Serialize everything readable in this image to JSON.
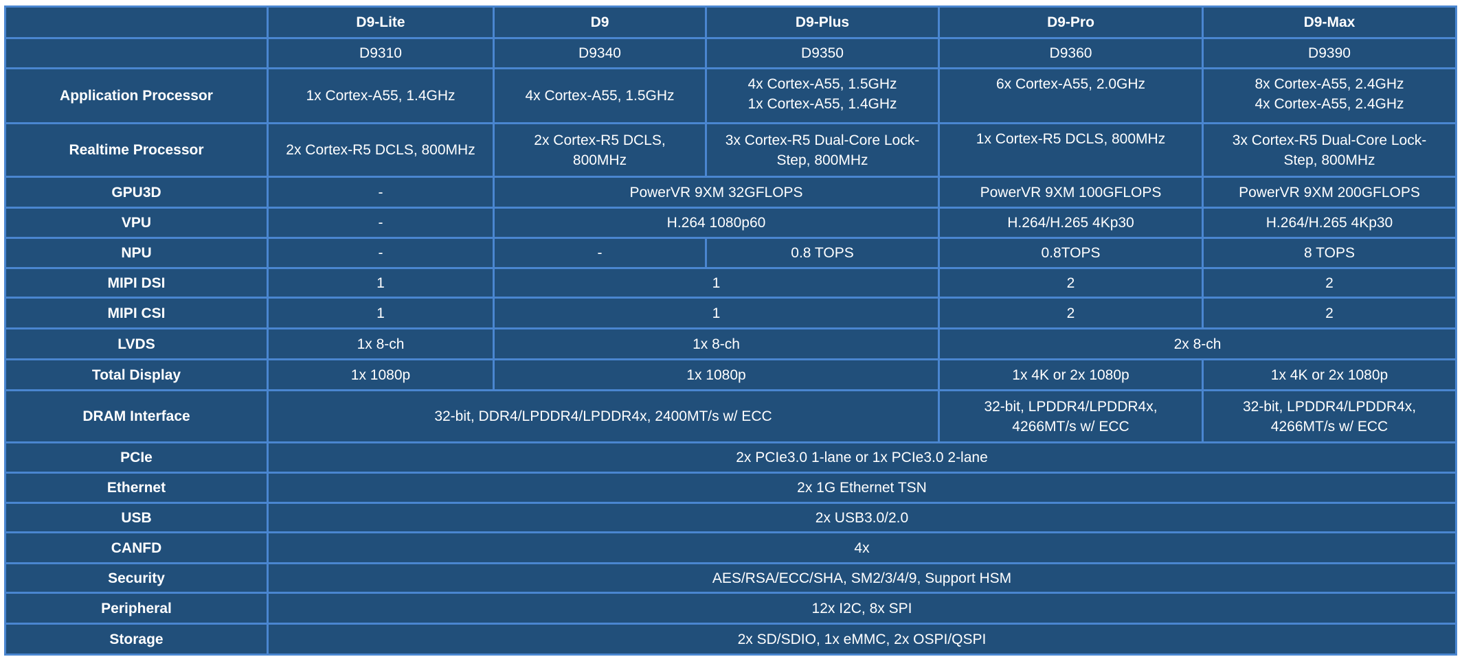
{
  "columns": [
    "",
    "D9-Lite",
    "D9",
    "D9-Plus",
    "D9-Pro",
    "D9-Max"
  ],
  "rows": [
    {
      "label": "",
      "cells": [
        {
          "text": "D9310",
          "span": 1
        },
        {
          "text": "D9340",
          "span": 1
        },
        {
          "text": "D9350",
          "span": 1
        },
        {
          "text": "D9360",
          "span": 1
        },
        {
          "text": "D9390",
          "span": 1
        }
      ]
    },
    {
      "label": "Application Processor",
      "cells": [
        {
          "text": "1x Cortex-A55, 1.4GHz",
          "span": 1
        },
        {
          "text": "4x Cortex-A55, 1.5GHz",
          "span": 1
        },
        {
          "text": "4x Cortex-A55, 1.5GHz\n1x Cortex-A55, 1.4GHz",
          "span": 1,
          "top": true
        },
        {
          "text": "6x Cortex-A55, 2.0GHz",
          "span": 1,
          "top": true
        },
        {
          "text": "8x Cortex-A55, 2.4GHz\n4x Cortex-A55, 2.4GHz",
          "span": 1,
          "top": true
        }
      ]
    },
    {
      "label": "Realtime Processor",
      "cells": [
        {
          "text": "2x Cortex-R5 DCLS, 800MHz",
          "span": 1
        },
        {
          "text": "2x Cortex-R5 DCLS,\n800MHz",
          "span": 1
        },
        {
          "text": "3x Cortex-R5 Dual-Core Lock-\nStep, 800MHz",
          "span": 1
        },
        {
          "text": "1x Cortex-R5 DCLS, 800MHz",
          "span": 1,
          "top": true
        },
        {
          "text": "3x Cortex-R5 Dual-Core Lock-\nStep, 800MHz",
          "span": 1
        }
      ]
    },
    {
      "label": "GPU3D",
      "cells": [
        {
          "text": "-",
          "span": 1
        },
        {
          "text": "PowerVR 9XM 32GFLOPS",
          "span": 2
        },
        {
          "text": "PowerVR 9XM 100GFLOPS",
          "span": 1
        },
        {
          "text": "PowerVR 9XM 200GFLOPS",
          "span": 1
        }
      ]
    },
    {
      "label": "VPU",
      "cells": [
        {
          "text": "-",
          "span": 1
        },
        {
          "text": "H.264 1080p60",
          "span": 2
        },
        {
          "text": "H.264/H.265 4Kp30",
          "span": 1
        },
        {
          "text": "H.264/H.265 4Kp30",
          "span": 1
        }
      ]
    },
    {
      "label": "NPU",
      "cells": [
        {
          "text": "-",
          "span": 1
        },
        {
          "text": "-",
          "span": 1
        },
        {
          "text": "0.8 TOPS",
          "span": 1
        },
        {
          "text": "0.8TOPS",
          "span": 1
        },
        {
          "text": "8 TOPS",
          "span": 1
        }
      ]
    },
    {
      "label": "MIPI DSI",
      "cells": [
        {
          "text": "1",
          "span": 1
        },
        {
          "text": "1",
          "span": 2
        },
        {
          "text": "2",
          "span": 1
        },
        {
          "text": "2",
          "span": 1
        }
      ]
    },
    {
      "label": "MIPI CSI",
      "cells": [
        {
          "text": "1",
          "span": 1
        },
        {
          "text": "1",
          "span": 2
        },
        {
          "text": "2",
          "span": 1
        },
        {
          "text": "2",
          "span": 1
        }
      ]
    },
    {
      "label": "LVDS",
      "cells": [
        {
          "text": "1x 8-ch",
          "span": 1
        },
        {
          "text": "1x 8-ch",
          "span": 2
        },
        {
          "text": "2x 8-ch",
          "span": 2
        }
      ]
    },
    {
      "label": "Total Display",
      "cells": [
        {
          "text": "1x 1080p",
          "span": 1
        },
        {
          "text": "1x 1080p",
          "span": 2
        },
        {
          "text": "1x 4K or 2x 1080p",
          "span": 1
        },
        {
          "text": "1x 4K or 2x 1080p",
          "span": 1
        }
      ]
    },
    {
      "label": "DRAM Interface",
      "cells": [
        {
          "text": "32-bit, DDR4/LPDDR4/LPDDR4x, 2400MT/s w/ ECC",
          "span": 3
        },
        {
          "text": "32-bit, LPDDR4/LPDDR4x,\n4266MT/s w/ ECC",
          "span": 1
        },
        {
          "text": "32-bit, LPDDR4/LPDDR4x,\n4266MT/s w/ ECC",
          "span": 1
        }
      ]
    },
    {
      "label": "PCIe",
      "cells": [
        {
          "text": "2x PCIe3.0 1-lane or 1x PCIe3.0 2-lane",
          "span": 5
        }
      ]
    },
    {
      "label": "Ethernet",
      "cells": [
        {
          "text": "2x 1G Ethernet TSN",
          "span": 5
        }
      ]
    },
    {
      "label": "USB",
      "cells": [
        {
          "text": "2x USB3.0/2.0",
          "span": 5
        }
      ]
    },
    {
      "label": "CANFD",
      "cells": [
        {
          "text": "4x",
          "span": 5
        }
      ]
    },
    {
      "label": "Security",
      "cells": [
        {
          "text": "AES/RSA/ECC/SHA, SM2/3/4/9, Support HSM",
          "span": 5
        }
      ]
    },
    {
      "label": "Peripheral",
      "cells": [
        {
          "text": "12x I2C, 8x SPI",
          "span": 5
        }
      ]
    },
    {
      "label": "Storage",
      "cells": [
        {
          "text": "2x SD/SDIO, 1x eMMC, 2x OSPI/QSPI",
          "span": 5
        }
      ]
    }
  ],
  "colors": {
    "cell_background": "#214f7a",
    "border": "#4a86d0",
    "text": "#ffffff"
  }
}
